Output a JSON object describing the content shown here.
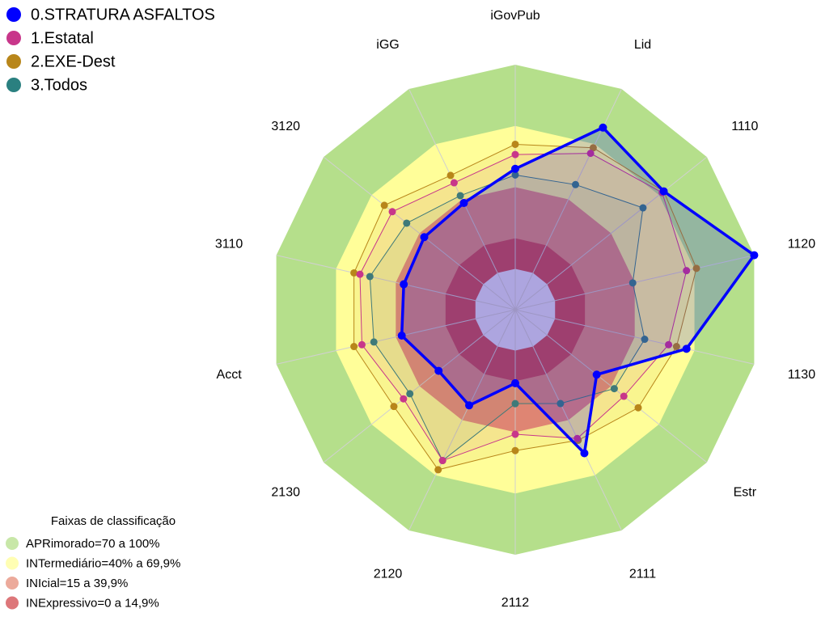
{
  "chart_data": {
    "type": "radar",
    "categories": [
      "iGovPub",
      "Lid",
      "1110",
      "1120",
      "1130",
      "Estr",
      "2111",
      "2112",
      "2120",
      "2130",
      "Acct",
      "3110",
      "3120",
      "iGG"
    ],
    "rlim": [
      -20,
      100
    ],
    "series": [
      {
        "name": "0.STRATURA ASFALTOS",
        "color": "#0000ff",
        "values": [
          49,
          79,
          73,
          100,
          66,
          31,
          58,
          16,
          32,
          28,
          37,
          36,
          37,
          38
        ]
      },
      {
        "name": "1.Estatal",
        "color": "#c8368a",
        "values": [
          56,
          65,
          72,
          66,
          57,
          48,
          50,
          41,
          62,
          50,
          57,
          58,
          57,
          49
        ]
      },
      {
        "name": "2.EXE-Dest",
        "color": "#b8861a",
        "values": [
          61,
          68,
          73,
          71,
          61,
          57,
          51,
          49,
          67,
          56,
          61,
          61,
          62,
          53
        ]
      },
      {
        "name": "3.Todos",
        "color": "#2a8080",
        "values": [
          46,
          48,
          60,
          39,
          45,
          42,
          31,
          26,
          62,
          46,
          51,
          53,
          48,
          42
        ]
      }
    ],
    "bands_title": "Faixas de classificação",
    "bands": [
      {
        "label": "APRimorado=70 a 100%",
        "color": "#b5df8b",
        "range": [
          70,
          100
        ]
      },
      {
        "label": "INTermediário=40% a 69,9%",
        "color": "#fffe99",
        "range": [
          40,
          70
        ]
      },
      {
        "label": "INIcial=15 a 39,9%",
        "color": "#e58e79",
        "range": [
          15,
          40
        ]
      },
      {
        "label": "INExpressivo=0 a 14,9%",
        "color": "#d1494d",
        "range": [
          0,
          15
        ]
      }
    ]
  }
}
